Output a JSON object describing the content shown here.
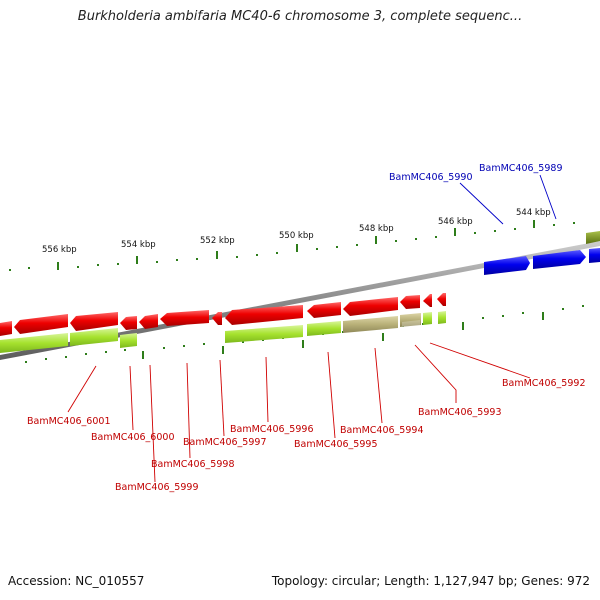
{
  "title": "Burkholderia ambifaria MC40-6 chromosome 3, complete sequenc...",
  "footer": {
    "accession": "Accession: NC_010557",
    "topology": "Topology: circular; Length: 1,127,947 bp; Genes: 972"
  },
  "scale_ticks": [
    {
      "label": "556 kbp"
    },
    {
      "label": "554 kbp"
    },
    {
      "label": "552 kbp"
    },
    {
      "label": "550 kbp"
    },
    {
      "label": "548 kbp"
    },
    {
      "label": "546 kbp"
    },
    {
      "label": "544 kbp"
    }
  ],
  "gene_labels": {
    "forward": [
      {
        "name": "BamMC406_5990"
      },
      {
        "name": "BamMC406_5989"
      }
    ],
    "reverse": [
      {
        "name": "BamMC406_6001"
      },
      {
        "name": "BamMC406_6000"
      },
      {
        "name": "BamMC406_5999"
      },
      {
        "name": "BamMC406_5998"
      },
      {
        "name": "BamMC406_5997"
      },
      {
        "name": "BamMC406_5996"
      },
      {
        "name": "BamMC406_5995"
      },
      {
        "name": "BamMC406_5994"
      },
      {
        "name": "BamMC406_5993"
      },
      {
        "name": "BamMC406_5992"
      }
    ]
  },
  "colors": {
    "forward_cds": "#0000ee",
    "reverse_cds": "#ee0000",
    "gene_bar": "#a6e22e",
    "gene_bar_alt": "#b8b078",
    "backbone": "#8a8a8a",
    "ticks": "#2e7d1a",
    "forward_label": "#0000b4",
    "reverse_label": "#c00000"
  }
}
